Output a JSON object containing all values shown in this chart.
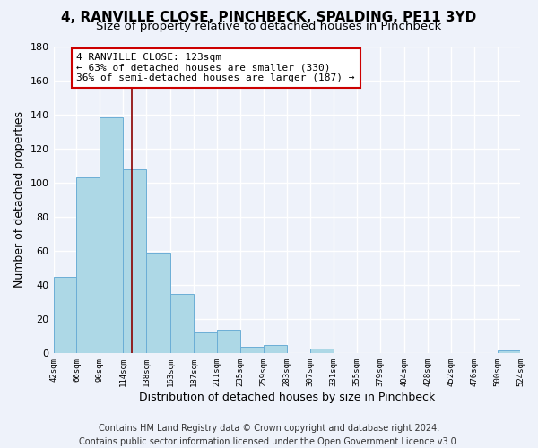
{
  "title": "4, RANVILLE CLOSE, PINCHBECK, SPALDING, PE11 3YD",
  "subtitle": "Size of property relative to detached houses in Pinchbeck",
  "xlabel": "Distribution of detached houses by size in Pinchbeck",
  "ylabel": "Number of detached properties",
  "bin_edges": [
    42,
    66,
    90,
    114,
    138,
    163,
    187,
    211,
    235,
    259,
    283,
    307,
    331,
    355,
    379,
    404,
    428,
    452,
    476,
    500,
    524
  ],
  "bin_counts": [
    45,
    103,
    138,
    108,
    59,
    35,
    12,
    14,
    4,
    5,
    0,
    3,
    0,
    0,
    0,
    0,
    0,
    0,
    0,
    2
  ],
  "bar_color": "#add8e6",
  "bar_edge_color": "#6baed6",
  "vline_x": 123,
  "vline_color": "#8b0000",
  "annotation_line1": "4 RANVILLE CLOSE: 123sqm",
  "annotation_line2": "← 63% of detached houses are smaller (330)",
  "annotation_line3": "36% of semi-detached houses are larger (187) →",
  "annotation_box_color": "white",
  "annotation_box_edge": "#cc0000",
  "ylim": [
    0,
    180
  ],
  "yticks": [
    0,
    20,
    40,
    60,
    80,
    100,
    120,
    140,
    160,
    180
  ],
  "tick_labels": [
    "42sqm",
    "66sqm",
    "90sqm",
    "114sqm",
    "138sqm",
    "163sqm",
    "187sqm",
    "211sqm",
    "235sqm",
    "259sqm",
    "283sqm",
    "307sqm",
    "331sqm",
    "355sqm",
    "379sqm",
    "404sqm",
    "428sqm",
    "452sqm",
    "476sqm",
    "500sqm",
    "524sqm"
  ],
  "footer_line1": "Contains HM Land Registry data © Crown copyright and database right 2024.",
  "footer_line2": "Contains public sector information licensed under the Open Government Licence v3.0.",
  "bg_color": "#eef2fa",
  "grid_color": "#ffffff",
  "title_fontsize": 11,
  "subtitle_fontsize": 9.5,
  "xlabel_fontsize": 9,
  "ylabel_fontsize": 9,
  "footer_fontsize": 7,
  "annotation_fontsize": 8
}
